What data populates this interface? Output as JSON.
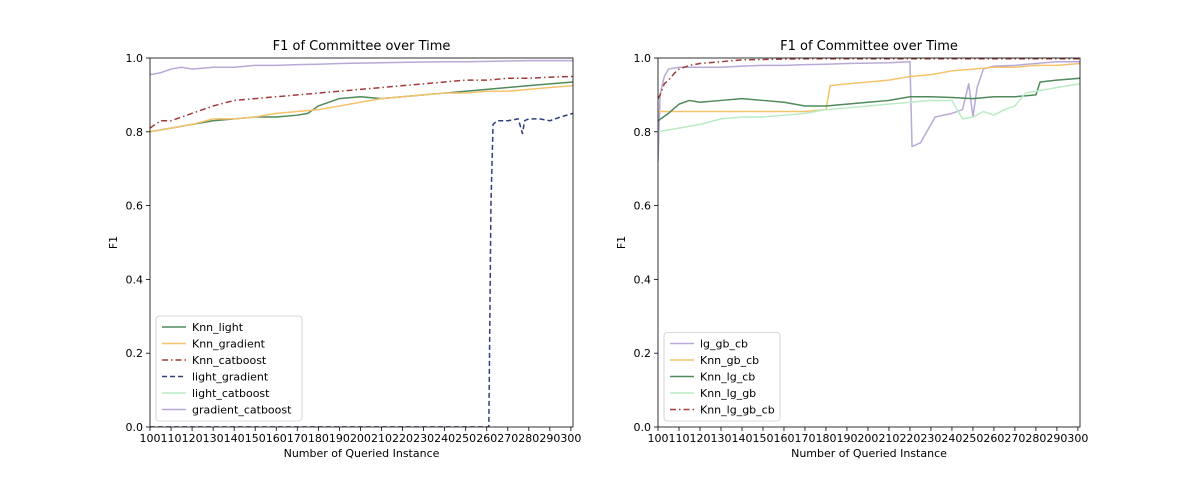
{
  "chart_data": [
    {
      "type": "line",
      "title": "F1 of Committee over Time",
      "xlabel": "Number of Queried Instance",
      "ylabel": "F1",
      "xlim": [
        100,
        301
      ],
      "ylim": [
        0.0,
        1.0
      ],
      "xticks": [
        100,
        110,
        120,
        130,
        140,
        150,
        160,
        170,
        180,
        190,
        200,
        210,
        220,
        230,
        240,
        250,
        260,
        270,
        280,
        290,
        300
      ],
      "yticks": [
        0.0,
        0.2,
        0.4,
        0.6,
        0.8,
        1.0
      ],
      "xtick_labels": [
        "100",
        "110",
        "120",
        "130",
        "140",
        "150",
        "160",
        "170",
        "180",
        "190",
        "200",
        "210",
        "220",
        "230",
        "240",
        "250",
        "260",
        "270",
        "280",
        "290",
        "300"
      ],
      "ytick_labels": [
        "0.0",
        "0.2",
        "0.4",
        "0.6",
        "0.8",
        "1.0"
      ],
      "grid": false,
      "legend_position": "lower-left",
      "series": [
        {
          "name": "Knn_light",
          "color": "#4f8a5b",
          "dash": "solid",
          "x": [
            100,
            110,
            120,
            130,
            140,
            150,
            160,
            170,
            175,
            180,
            190,
            200,
            210,
            220,
            230,
            240,
            250,
            260,
            270,
            280,
            290,
            301
          ],
          "y": [
            0.8,
            0.81,
            0.82,
            0.83,
            0.835,
            0.84,
            0.84,
            0.845,
            0.85,
            0.87,
            0.89,
            0.895,
            0.89,
            0.895,
            0.9,
            0.905,
            0.91,
            0.915,
            0.92,
            0.925,
            0.93,
            0.935
          ]
        },
        {
          "name": "Knn_gradient",
          "color": "#f6c36d",
          "dash": "solid",
          "x": [
            100,
            110,
            120,
            130,
            140,
            150,
            160,
            170,
            180,
            190,
            200,
            210,
            220,
            230,
            240,
            250,
            260,
            270,
            280,
            290,
            301
          ],
          "y": [
            0.8,
            0.81,
            0.82,
            0.835,
            0.835,
            0.84,
            0.85,
            0.855,
            0.86,
            0.87,
            0.88,
            0.89,
            0.895,
            0.9,
            0.905,
            0.905,
            0.91,
            0.91,
            0.915,
            0.92,
            0.925
          ]
        },
        {
          "name": "Knn_catboost",
          "color": "#a23b3b",
          "dash": "dashdot",
          "x": [
            100,
            105,
            110,
            120,
            130,
            140,
            150,
            160,
            170,
            180,
            190,
            200,
            210,
            220,
            230,
            240,
            250,
            260,
            270,
            280,
            290,
            301
          ],
          "y": [
            0.81,
            0.83,
            0.83,
            0.85,
            0.87,
            0.885,
            0.89,
            0.895,
            0.9,
            0.905,
            0.91,
            0.915,
            0.92,
            0.925,
            0.93,
            0.935,
            0.94,
            0.94,
            0.945,
            0.945,
            0.948,
            0.95
          ]
        },
        {
          "name": "light_gradient",
          "color": "#2e3f7c",
          "dash": "dashed",
          "x": [
            100,
            150,
            200,
            250,
            261,
            262,
            263,
            265,
            270,
            275,
            277,
            278,
            280,
            285,
            290,
            295,
            301
          ],
          "y": [
            0.0,
            0.0,
            0.0,
            0.0,
            0.0,
            0.6,
            0.82,
            0.83,
            0.83,
            0.835,
            0.795,
            0.83,
            0.835,
            0.835,
            0.83,
            0.84,
            0.85
          ]
        },
        {
          "name": "light_catboost",
          "color": "#b9ecc4",
          "dash": "solid",
          "x": [],
          "y": []
        },
        {
          "name": "gradient_catboost",
          "color": "#b9a9d8",
          "dash": "solid",
          "x": [
            100,
            105,
            110,
            115,
            120,
            130,
            140,
            150,
            160,
            170,
            180,
            190,
            200,
            210,
            220,
            230,
            240,
            250,
            260,
            270,
            280,
            290,
            301
          ],
          "y": [
            0.955,
            0.96,
            0.97,
            0.975,
            0.97,
            0.975,
            0.975,
            0.98,
            0.98,
            0.982,
            0.983,
            0.985,
            0.986,
            0.987,
            0.988,
            0.989,
            0.99,
            0.99,
            0.991,
            0.992,
            0.993,
            0.993,
            0.993
          ]
        }
      ]
    },
    {
      "type": "line",
      "title": "F1 of Committee over Time",
      "xlabel": "Number of Queried Instance",
      "ylabel": "F1",
      "xlim": [
        100,
        301
      ],
      "ylim": [
        0.0,
        1.0
      ],
      "xticks": [
        100,
        110,
        120,
        130,
        140,
        150,
        160,
        170,
        180,
        190,
        200,
        210,
        220,
        230,
        240,
        250,
        260,
        270,
        280,
        290,
        300
      ],
      "yticks": [
        0.0,
        0.2,
        0.4,
        0.6,
        0.8,
        1.0
      ],
      "xtick_labels": [
        "100",
        "110",
        "120",
        "130",
        "140",
        "150",
        "160",
        "170",
        "180",
        "190",
        "200",
        "210",
        "220",
        "230",
        "240",
        "250",
        "260",
        "270",
        "280",
        "290",
        "300"
      ],
      "ytick_labels": [
        "0.0",
        "0.2",
        "0.4",
        "0.6",
        "0.8",
        "1.0"
      ],
      "grid": false,
      "legend_position": "lower-left",
      "series": [
        {
          "name": "lg_gb_cb",
          "color": "#b9a9d8",
          "dash": "solid",
          "x": [
            100,
            101,
            103,
            105,
            110,
            120,
            130,
            140,
            150,
            160,
            170,
            180,
            190,
            200,
            210,
            220,
            221,
            225,
            228,
            232,
            240,
            245,
            248,
            250,
            252,
            255,
            258,
            260,
            270,
            280,
            290,
            301
          ],
          "y": [
            0.72,
            0.9,
            0.95,
            0.97,
            0.975,
            0.975,
            0.975,
            0.978,
            0.98,
            0.98,
            0.982,
            0.983,
            0.985,
            0.986,
            0.987,
            0.99,
            0.76,
            0.77,
            0.8,
            0.84,
            0.85,
            0.86,
            0.93,
            0.84,
            0.92,
            0.97,
            0.975,
            0.978,
            0.98,
            0.985,
            0.99,
            0.99
          ]
        },
        {
          "name": "Knn_gb_cb",
          "color": "#f6c36d",
          "dash": "solid",
          "x": [
            100,
            170,
            180,
            182,
            190,
            200,
            210,
            220,
            230,
            240,
            250,
            260,
            270,
            280,
            290,
            301
          ],
          "y": [
            0.855,
            0.855,
            0.86,
            0.925,
            0.93,
            0.935,
            0.94,
            0.95,
            0.955,
            0.965,
            0.97,
            0.975,
            0.975,
            0.98,
            0.98,
            0.985
          ]
        },
        {
          "name": "Knn_lg_cb",
          "color": "#4f8a5b",
          "dash": "solid",
          "x": [
            100,
            105,
            110,
            115,
            120,
            130,
            140,
            150,
            160,
            170,
            180,
            190,
            200,
            210,
            220,
            230,
            240,
            250,
            260,
            270,
            280,
            282,
            290,
            301
          ],
          "y": [
            0.83,
            0.85,
            0.875,
            0.885,
            0.88,
            0.885,
            0.89,
            0.885,
            0.88,
            0.87,
            0.87,
            0.875,
            0.88,
            0.885,
            0.895,
            0.895,
            0.893,
            0.89,
            0.895,
            0.895,
            0.9,
            0.935,
            0.94,
            0.945
          ]
        },
        {
          "name": "Knn_lg_gb",
          "color": "#b9ecc4",
          "dash": "solid",
          "x": [
            100,
            110,
            120,
            130,
            140,
            150,
            160,
            170,
            180,
            190,
            200,
            210,
            220,
            230,
            240,
            245,
            250,
            255,
            260,
            265,
            270,
            275,
            280,
            290,
            301
          ],
          "y": [
            0.8,
            0.81,
            0.82,
            0.835,
            0.84,
            0.84,
            0.845,
            0.85,
            0.86,
            0.865,
            0.87,
            0.875,
            0.88,
            0.885,
            0.885,
            0.835,
            0.84,
            0.855,
            0.845,
            0.86,
            0.87,
            0.905,
            0.91,
            0.92,
            0.93
          ]
        },
        {
          "name": "Knn_lg_gb_cb",
          "color": "#a23b3b",
          "dash": "dashdot",
          "x": [
            100,
            101,
            103,
            105,
            108,
            110,
            115,
            120,
            130,
            140,
            150,
            160,
            170,
            180,
            190,
            200,
            210,
            220,
            230,
            240,
            250,
            260,
            270,
            280,
            290,
            301
          ],
          "y": [
            0.89,
            0.9,
            0.93,
            0.94,
            0.96,
            0.97,
            0.98,
            0.985,
            0.99,
            0.995,
            0.996,
            0.997,
            0.998,
            0.998,
            0.998,
            0.998,
            0.998,
            0.998,
            0.998,
            0.998,
            0.998,
            0.998,
            0.998,
            0.998,
            0.998,
            0.998
          ]
        }
      ]
    }
  ]
}
